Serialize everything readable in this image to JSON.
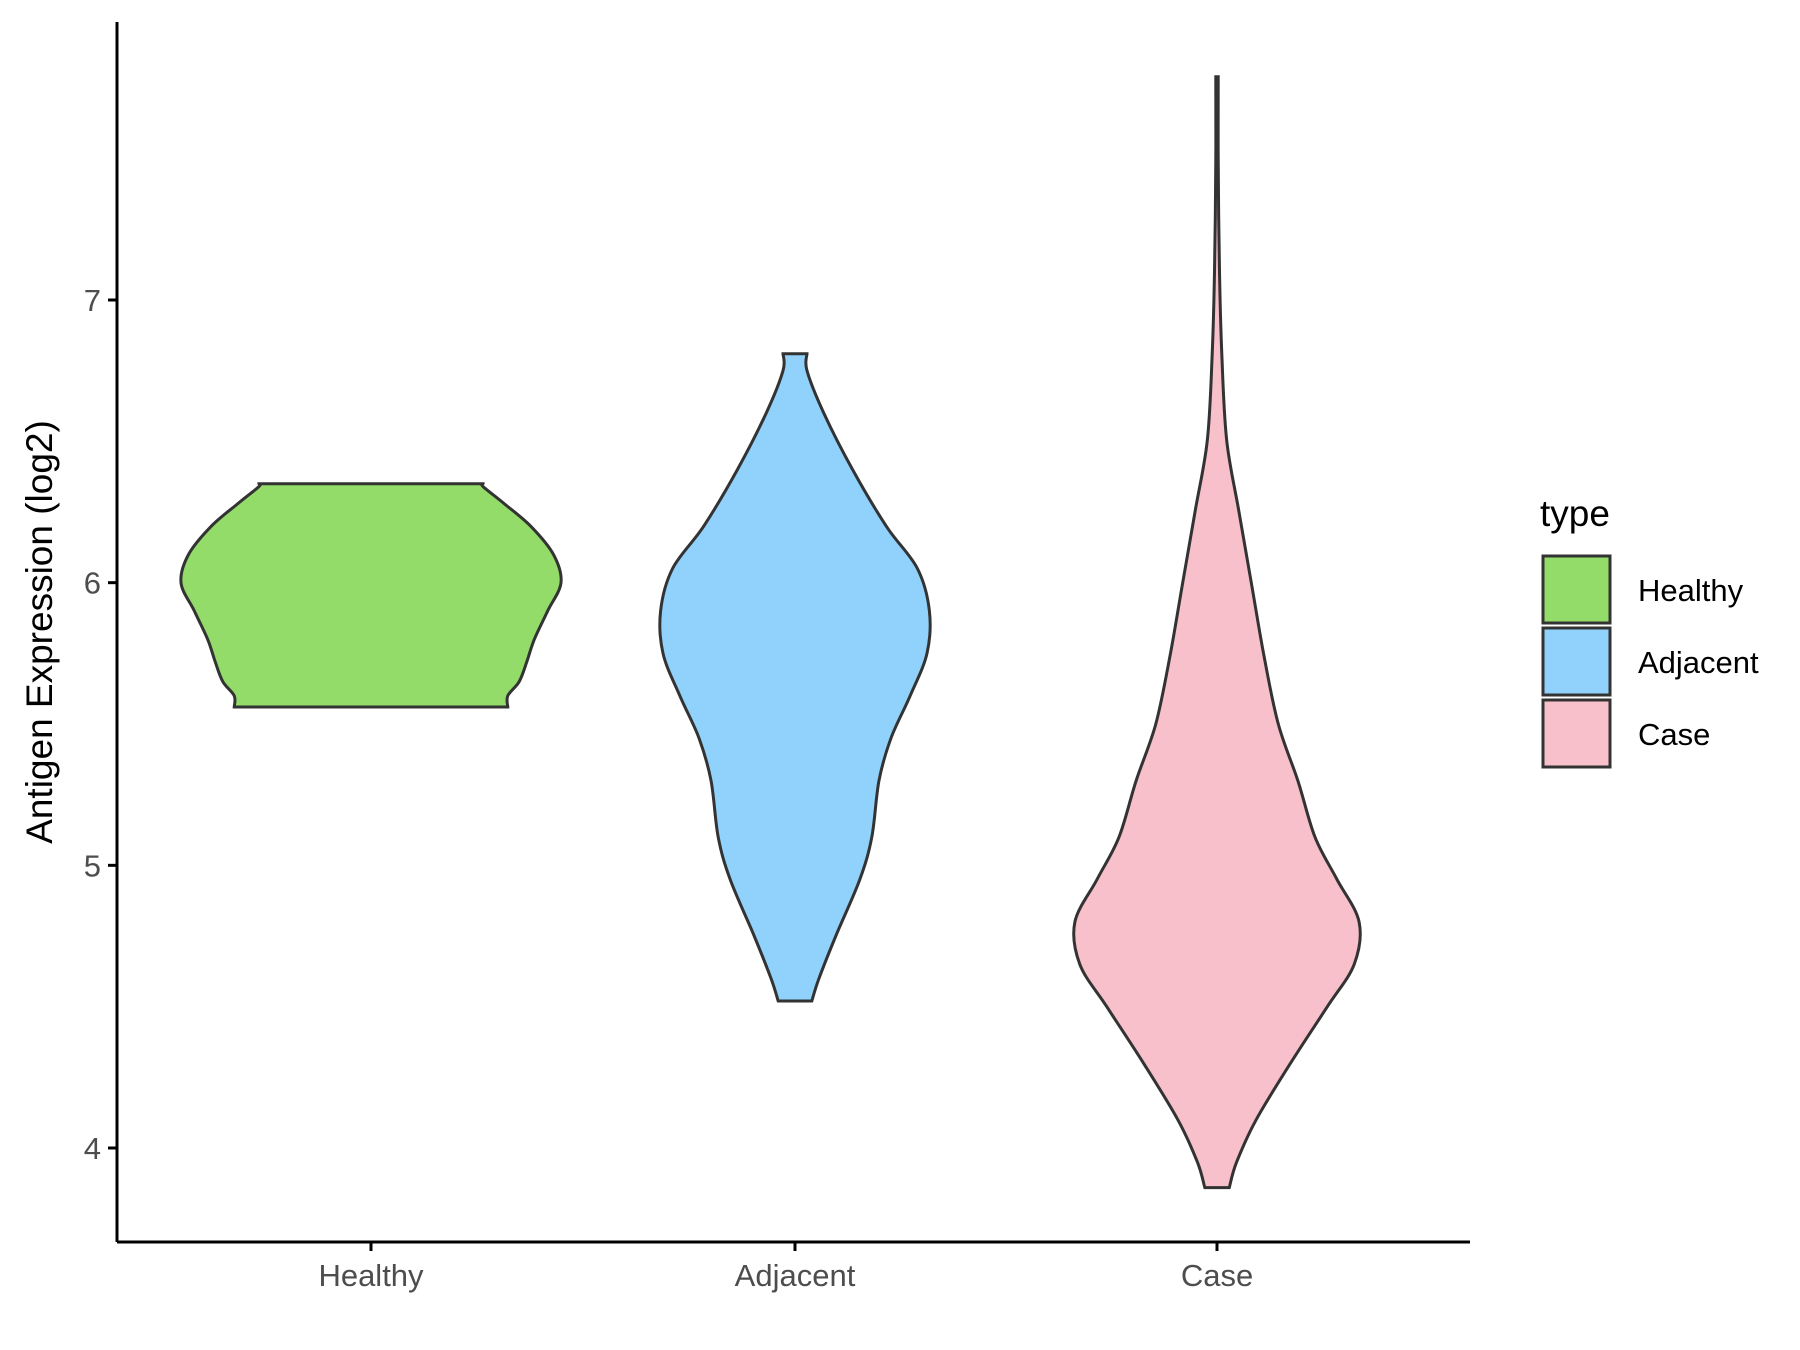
{
  "chart_data": {
    "type": "violin",
    "title": "",
    "xlabel": "",
    "ylabel": "Antigen Expression (log2)",
    "categories": [
      "Healthy",
      "Adjacent",
      "Case"
    ],
    "y_ticks": [
      4,
      5,
      6,
      7
    ],
    "ylim": [
      3.68,
      7.98
    ],
    "grid": false,
    "legend": {
      "title": "type",
      "placement": "right",
      "entries": [
        "Healthy",
        "Adjacent",
        "Case"
      ]
    },
    "colors": {
      "Healthy": "#93DC6A",
      "Adjacent": "#91D2FC",
      "Case": "#F7C0CB",
      "outline": "#333333"
    },
    "series": [
      {
        "category": "Healthy",
        "density_profile": [
          {
            "y": 5.56,
            "w": 0.72
          },
          {
            "y": 5.6,
            "w": 0.72
          },
          {
            "y": 5.65,
            "w": 0.78
          },
          {
            "y": 5.72,
            "w": 0.82
          },
          {
            "y": 5.8,
            "w": 0.86
          },
          {
            "y": 5.9,
            "w": 0.93
          },
          {
            "y": 6.0,
            "w": 1.0
          },
          {
            "y": 6.1,
            "w": 0.96
          },
          {
            "y": 6.2,
            "w": 0.84
          },
          {
            "y": 6.28,
            "w": 0.7
          },
          {
            "y": 6.34,
            "w": 0.59
          },
          {
            "y": 6.35,
            "w": 0.59
          }
        ]
      },
      {
        "category": "Adjacent",
        "density_profile": [
          {
            "y": 4.52,
            "w": 0.07
          },
          {
            "y": 4.6,
            "w": 0.1
          },
          {
            "y": 4.75,
            "w": 0.17
          },
          {
            "y": 4.95,
            "w": 0.27
          },
          {
            "y": 5.1,
            "w": 0.32
          },
          {
            "y": 5.3,
            "w": 0.35
          },
          {
            "y": 5.45,
            "w": 0.4
          },
          {
            "y": 5.6,
            "w": 0.48
          },
          {
            "y": 5.75,
            "w": 0.55
          },
          {
            "y": 5.9,
            "w": 0.56
          },
          {
            "y": 6.05,
            "w": 0.51
          },
          {
            "y": 6.2,
            "w": 0.38
          },
          {
            "y": 6.4,
            "w": 0.24
          },
          {
            "y": 6.6,
            "w": 0.12
          },
          {
            "y": 6.75,
            "w": 0.05
          },
          {
            "y": 6.81,
            "w": 0.05
          }
        ]
      },
      {
        "category": "Case",
        "density_profile": [
          {
            "y": 3.86,
            "w": 0.05
          },
          {
            "y": 3.95,
            "w": 0.08
          },
          {
            "y": 4.1,
            "w": 0.16
          },
          {
            "y": 4.3,
            "w": 0.3
          },
          {
            "y": 4.5,
            "w": 0.45
          },
          {
            "y": 4.65,
            "w": 0.56
          },
          {
            "y": 4.8,
            "w": 0.58
          },
          {
            "y": 4.95,
            "w": 0.49
          },
          {
            "y": 5.1,
            "w": 0.4
          },
          {
            "y": 5.3,
            "w": 0.33
          },
          {
            "y": 5.5,
            "w": 0.25
          },
          {
            "y": 5.75,
            "w": 0.19
          },
          {
            "y": 6.0,
            "w": 0.14
          },
          {
            "y": 6.25,
            "w": 0.09
          },
          {
            "y": 6.5,
            "w": 0.04
          },
          {
            "y": 6.8,
            "w": 0.02
          },
          {
            "y": 7.1,
            "w": 0.01
          },
          {
            "y": 7.5,
            "w": 0.005
          },
          {
            "y": 7.79,
            "w": 0.005
          }
        ]
      }
    ]
  }
}
